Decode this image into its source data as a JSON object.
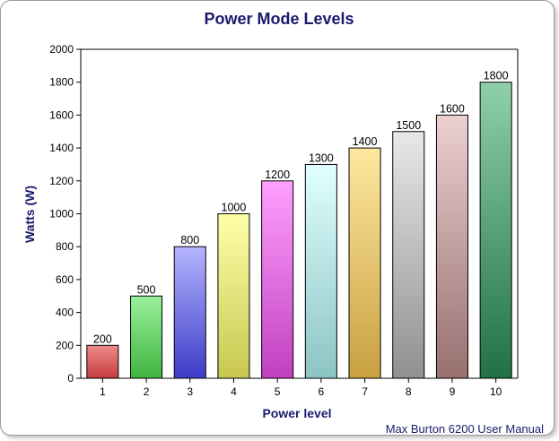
{
  "chart_data": {
    "type": "bar",
    "title": "Power Mode Levels",
    "xlabel": "Power level",
    "ylabel": "Watts (W)",
    "categories": [
      "1",
      "2",
      "3",
      "4",
      "5",
      "6",
      "7",
      "8",
      "9",
      "10"
    ],
    "values": [
      200,
      500,
      800,
      1000,
      1200,
      1300,
      1400,
      1500,
      1600,
      1800
    ],
    "ylim": [
      0,
      2000
    ],
    "yticks": [
      0,
      200,
      400,
      600,
      800,
      1000,
      1200,
      1400,
      1600,
      1800,
      2000
    ],
    "grid": false,
    "legend": "none",
    "bar_colors": [
      [
        "#f08a8a",
        "#c43c3c"
      ],
      [
        "#9af09a",
        "#3fb43f"
      ],
      [
        "#b4b4ff",
        "#3c3cc8"
      ],
      [
        "#ffffaa",
        "#c8c850"
      ],
      [
        "#ffa0ff",
        "#c040c0"
      ],
      [
        "#e0ffff",
        "#8cc4c4"
      ],
      [
        "#ffe8a0",
        "#c8a040"
      ],
      [
        "#e8e8e8",
        "#909090"
      ],
      [
        "#ecd0d0",
        "#987070"
      ],
      [
        "#90d0a8",
        "#207048"
      ]
    ]
  },
  "footer": "Max Burton 6200 User Manual"
}
